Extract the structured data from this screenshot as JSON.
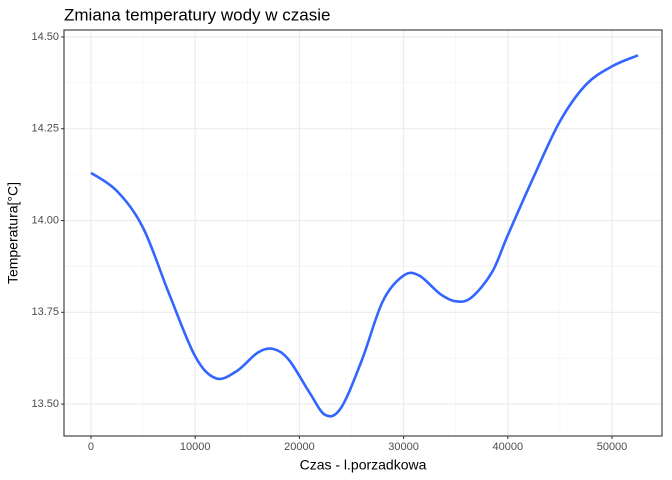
{
  "chart_data": {
    "type": "line",
    "title": "Zmiana temperatury wody w czasie",
    "x_label": "Czas - l.porzadkowa",
    "y_label": "Temperatura[°C]",
    "x": [
      0,
      2500,
      5000,
      7500,
      10000,
      12000,
      14000,
      16000,
      17500,
      19000,
      21000,
      22500,
      24000,
      26000,
      28000,
      30000,
      31500,
      33500,
      35000,
      36500,
      38500,
      40000,
      42500,
      45000,
      47500,
      50000,
      52500
    ],
    "series": [
      {
        "color": "#3366ff",
        "values": [
          14.13,
          14.08,
          13.98,
          13.8,
          13.63,
          13.57,
          13.59,
          13.64,
          13.65,
          13.62,
          13.53,
          13.47,
          13.49,
          13.62,
          13.78,
          13.85,
          13.85,
          13.8,
          13.78,
          13.79,
          13.86,
          13.96,
          14.12,
          14.27,
          14.37,
          14.42,
          14.45
        ]
      }
    ],
    "xlim": [
      -2591,
      54798
    ],
    "ylim": [
      13.413,
      14.519
    ],
    "xticks": [
      0,
      10000,
      20000,
      30000,
      40000,
      50000
    ],
    "yticks": [
      {
        "value": 13.5,
        "label": "13.50"
      },
      13.75,
      {
        "value": 14.0,
        "label": "14.00"
      },
      14.25,
      {
        "value": 14.5,
        "label": "14.50"
      }
    ],
    "x_minor_ticks": [
      5000,
      15000,
      25000,
      35000,
      45000
    ],
    "y_minor_ticks": [
      13.625,
      13.875,
      14.125,
      14.375
    ],
    "grid": true
  }
}
